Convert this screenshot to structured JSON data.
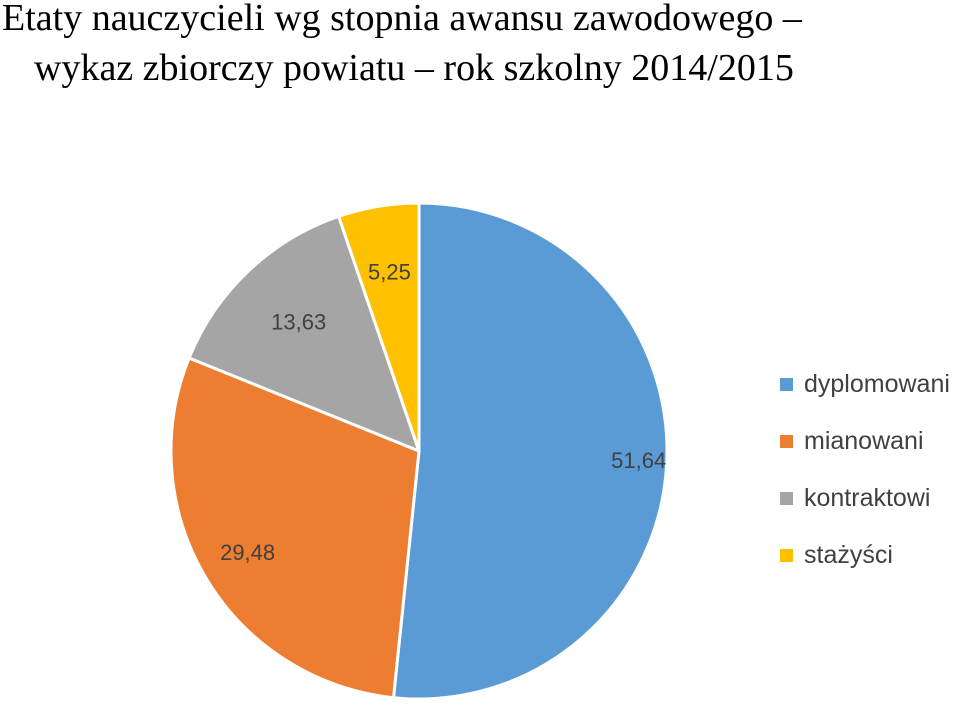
{
  "chart_data": {
    "type": "pie",
    "title": "Etaty nauczycieli wg stopnia awansu zawodowego – wykaz zbiorczy powiatu – rok szkolny 2014/2015",
    "title_lines": [
      "Etaty nauczycieli wg stopnia awansu zawodowego –",
      "wykaz zbiorczy powiatu – rok szkolny 2014/2015"
    ],
    "categories": [
      "dyplomowani",
      "mianowani",
      "kontraktowi",
      "stażyści"
    ],
    "values": [
      51.64,
      29.48,
      13.63,
      5.25
    ],
    "value_labels": [
      "51,64",
      "29,48",
      "13,63",
      "5,25"
    ],
    "colors": [
      "#5B9BD5",
      "#ED7D31",
      "#A5A5A5",
      "#FFC000"
    ],
    "start_angle": "12 o'clock",
    "direction": "clockwise",
    "legend_position": "right"
  }
}
